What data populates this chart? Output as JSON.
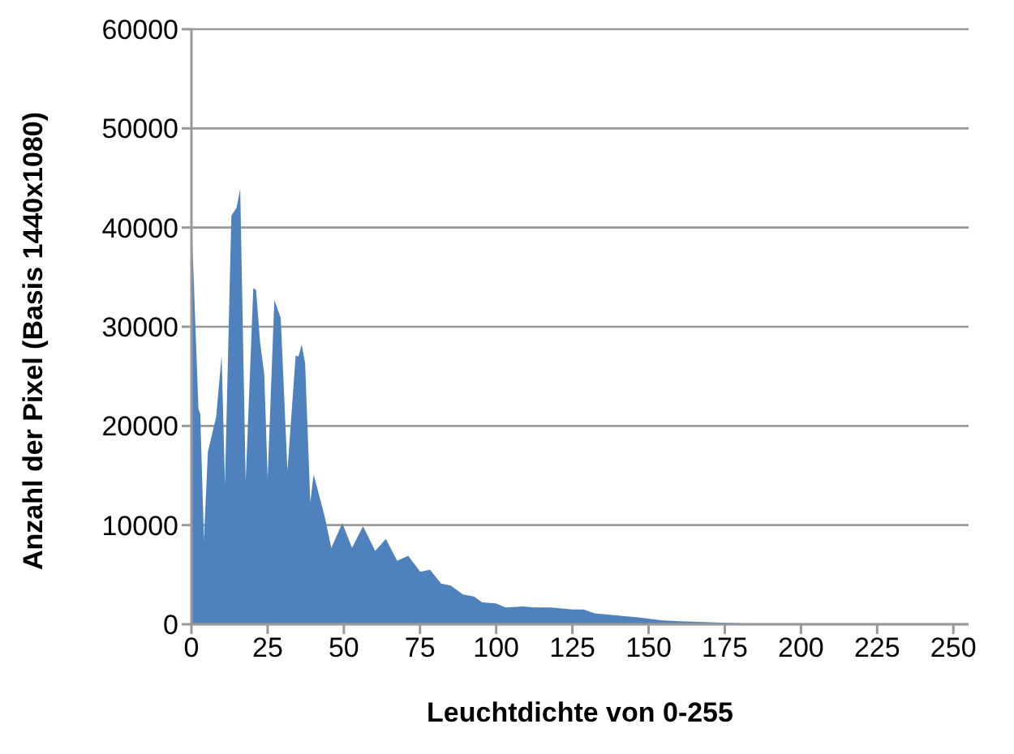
{
  "chart_data": {
    "type": "area",
    "xlabel": "Leuchtdichte von 0-255",
    "ylabel": "Anzahl der Pixel (Basis 1440x1080)",
    "x": [
      0,
      2.3,
      2.9,
      4.1,
      5.4,
      8.1,
      9.9,
      11,
      13.1,
      14.8,
      16,
      17.8,
      20.3,
      21.2,
      22.5,
      23.9,
      25,
      27.2,
      29.3,
      31.5,
      34.2,
      35.1,
      36.2,
      37.3,
      39,
      40.1,
      43.7,
      45.9,
      49.5,
      52.7,
      56.3,
      60.3,
      63.8,
      67.5,
      71.1,
      75.1,
      78.3,
      81.9,
      85.1,
      89.1,
      92.7,
      95.4,
      99.9,
      103.1,
      108.9,
      112.5,
      117.9,
      125.1,
      128.7,
      132.3,
      139.5,
      146.7,
      153.9,
      160,
      170,
      180,
      185,
      220,
      255
    ],
    "series": [
      {
        "color": "#4f81bd",
        "values": [
          41000,
          21700,
          21200,
          8500,
          17400,
          20900,
          27100,
          14100,
          41200,
          42000,
          43900,
          14400,
          33900,
          33700,
          28500,
          25200,
          14700,
          32700,
          30900,
          15500,
          27100,
          27000,
          28200,
          26300,
          12300,
          15100,
          10900,
          7700,
          10200,
          7700,
          9900,
          7400,
          8600,
          6400,
          6900,
          5300,
          5500,
          4100,
          3900,
          3000,
          2800,
          2200,
          2100,
          1700,
          1800,
          1700,
          1700,
          1500,
          1500,
          1100,
          900,
          700,
          400,
          300,
          200,
          100,
          0,
          0,
          0
        ]
      }
    ],
    "xlim": [
      0,
      255
    ],
    "xticks": [
      0,
      25,
      50,
      75,
      100,
      125,
      150,
      175,
      200,
      225,
      250
    ],
    "ylim": [
      0,
      60000
    ],
    "yticks": [
      0,
      10000,
      20000,
      30000,
      40000,
      50000,
      60000
    ],
    "grid": "y",
    "legend": false,
    "marker": "none"
  }
}
